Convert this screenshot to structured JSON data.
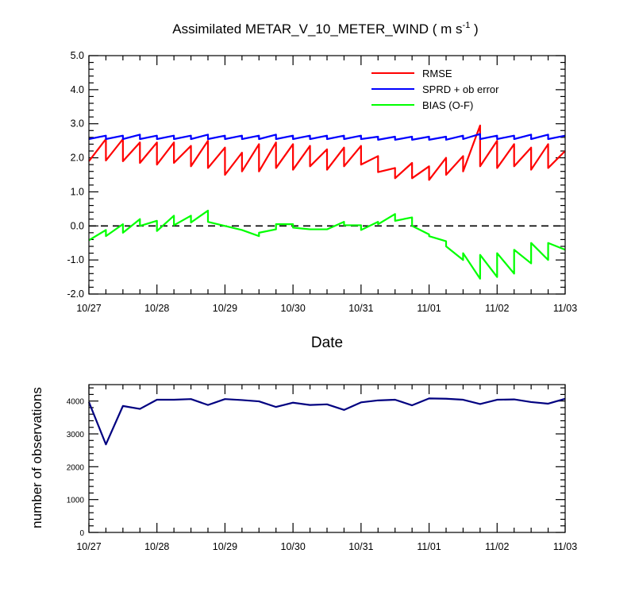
{
  "chart_data": [
    {
      "type": "line",
      "title": "Assimilated METAR_V_10_METER_WIND ( m s",
      "title_exponent": "-1",
      "title_close": " )",
      "xlabel": "Date",
      "ylabel": "",
      "xlim": [
        "10/27 00:00",
        "11/03 00:00"
      ],
      "ylim": [
        -2.0,
        5.0
      ],
      "x_ticks": [
        "10/27",
        "10/28",
        "10/29",
        "10/30",
        "10/31",
        "11/01",
        "11/02",
        "11/03"
      ],
      "y_ticks": [
        "-2.0",
        "-1.0",
        "0.0",
        "1.0",
        "2.0",
        "3.0",
        "4.0",
        "5.0"
      ],
      "y_tick_values": [
        -2,
        -1,
        0,
        1,
        2,
        3,
        4,
        5
      ],
      "zero_line": "dashed",
      "grid": false,
      "legend_position": "top-right",
      "series": [
        {
          "name": "RMSE",
          "color": "#ff0000",
          "points": [
            [
              "10/27 00:00",
              1.9
            ],
            [
              "10/27 06:00",
              2.55
            ],
            [
              "10/27 06:00",
              1.92
            ],
            [
              "10/27 12:00",
              2.55
            ],
            [
              "10/27 12:00",
              1.9
            ],
            [
              "10/27 18:00",
              2.45
            ],
            [
              "10/27 18:00",
              1.85
            ],
            [
              "10/28 00:00",
              2.45
            ],
            [
              "10/28 00:00",
              1.8
            ],
            [
              "10/28 06:00",
              2.45
            ],
            [
              "10/28 06:00",
              1.85
            ],
            [
              "10/28 12:00",
              2.35
            ],
            [
              "10/28 12:00",
              1.75
            ],
            [
              "10/28 18:00",
              2.5
            ],
            [
              "10/28 18:00",
              1.7
            ],
            [
              "10/29 00:00",
              2.3
            ],
            [
              "10/29 00:00",
              1.5
            ],
            [
              "10/29 06:00",
              2.15
            ],
            [
              "10/29 06:00",
              1.6
            ],
            [
              "10/29 12:00",
              2.4
            ],
            [
              "10/29 12:00",
              1.6
            ],
            [
              "10/29 18:00",
              2.45
            ],
            [
              "10/29 18:00",
              1.7
            ],
            [
              "10/30 00:00",
              2.4
            ],
            [
              "10/30 00:00",
              1.65
            ],
            [
              "10/30 06:00",
              2.35
            ],
            [
              "10/30 06:00",
              1.75
            ],
            [
              "10/30 12:00",
              2.25
            ],
            [
              "10/30 12:00",
              1.65
            ],
            [
              "10/30 18:00",
              2.3
            ],
            [
              "10/30 18:00",
              1.75
            ],
            [
              "10/31 00:00",
              2.35
            ],
            [
              "10/31 00:00",
              1.8
            ],
            [
              "10/31 06:00",
              2.05
            ],
            [
              "10/31 06:00",
              1.58
            ],
            [
              "10/31 12:00",
              1.7
            ],
            [
              "10/31 12:00",
              1.4
            ],
            [
              "10/31 18:00",
              1.85
            ],
            [
              "10/31 18:00",
              1.4
            ],
            [
              "11/01 00:00",
              1.75
            ],
            [
              "11/01 00:00",
              1.35
            ],
            [
              "11/01 06:00",
              2.0
            ],
            [
              "11/01 06:00",
              1.5
            ],
            [
              "11/01 12:00",
              2.05
            ],
            [
              "11/01 12:00",
              1.6
            ],
            [
              "11/01 18:00",
              2.95
            ],
            [
              "11/01 18:00",
              1.75
            ],
            [
              "11/02 00:00",
              2.5
            ],
            [
              "11/02 00:00",
              1.7
            ],
            [
              "11/02 06:00",
              2.4
            ],
            [
              "11/02 06:00",
              1.75
            ],
            [
              "11/02 12:00",
              2.3
            ],
            [
              "11/02 12:00",
              1.65
            ],
            [
              "11/02 18:00",
              2.4
            ],
            [
              "11/02 18:00",
              1.7
            ],
            [
              "11/03 00:00",
              2.2
            ]
          ]
        },
        {
          "name": "SPRD + ob error",
          "color": "#0000ff",
          "points": [
            [
              "10/27 00:00",
              2.55
            ],
            [
              "10/27 06:00",
              2.65
            ],
            [
              "10/27 06:00",
              2.55
            ],
            [
              "10/27 12:00",
              2.65
            ],
            [
              "10/27 12:00",
              2.55
            ],
            [
              "10/27 18:00",
              2.68
            ],
            [
              "10/27 18:00",
              2.55
            ],
            [
              "10/28 00:00",
              2.65
            ],
            [
              "10/28 00:00",
              2.55
            ],
            [
              "10/28 06:00",
              2.65
            ],
            [
              "10/28 06:00",
              2.55
            ],
            [
              "10/28 12:00",
              2.65
            ],
            [
              "10/28 12:00",
              2.55
            ],
            [
              "10/28 18:00",
              2.68
            ],
            [
              "10/28 18:00",
              2.55
            ],
            [
              "10/29 00:00",
              2.65
            ],
            [
              "10/29 00:00",
              2.55
            ],
            [
              "10/29 06:00",
              2.65
            ],
            [
              "10/29 06:00",
              2.55
            ],
            [
              "10/29 12:00",
              2.65
            ],
            [
              "10/29 12:00",
              2.55
            ],
            [
              "10/29 18:00",
              2.68
            ],
            [
              "10/29 18:00",
              2.55
            ],
            [
              "10/30 00:00",
              2.65
            ],
            [
              "10/30 00:00",
              2.55
            ],
            [
              "10/30 06:00",
              2.65
            ],
            [
              "10/30 06:00",
              2.55
            ],
            [
              "10/30 12:00",
              2.65
            ],
            [
              "10/30 12:00",
              2.55
            ],
            [
              "10/30 18:00",
              2.65
            ],
            [
              "10/30 18:00",
              2.55
            ],
            [
              "10/31 00:00",
              2.65
            ],
            [
              "10/31 00:00",
              2.55
            ],
            [
              "10/31 06:00",
              2.62
            ],
            [
              "10/31 06:00",
              2.53
            ],
            [
              "10/31 12:00",
              2.62
            ],
            [
              "10/31 12:00",
              2.53
            ],
            [
              "10/31 18:00",
              2.62
            ],
            [
              "10/31 18:00",
              2.53
            ],
            [
              "11/01 00:00",
              2.62
            ],
            [
              "11/01 00:00",
              2.53
            ],
            [
              "11/01 06:00",
              2.62
            ],
            [
              "11/01 06:00",
              2.53
            ],
            [
              "11/01 12:00",
              2.65
            ],
            [
              "11/01 12:00",
              2.55
            ],
            [
              "11/01 18:00",
              2.7
            ],
            [
              "11/01 18:00",
              2.55
            ],
            [
              "11/02 00:00",
              2.65
            ],
            [
              "11/02 00:00",
              2.55
            ],
            [
              "11/02 06:00",
              2.65
            ],
            [
              "11/02 06:00",
              2.55
            ],
            [
              "11/02 12:00",
              2.68
            ],
            [
              "11/02 12:00",
              2.55
            ],
            [
              "11/02 18:00",
              2.68
            ],
            [
              "11/02 18:00",
              2.55
            ],
            [
              "11/03 00:00",
              2.65
            ]
          ]
        },
        {
          "name": "BIAS (O-F)",
          "color": "#00ff00",
          "points": [
            [
              "10/27 00:00",
              -0.42
            ],
            [
              "10/27 06:00",
              -0.12
            ],
            [
              "10/27 06:00",
              -0.3
            ],
            [
              "10/27 12:00",
              0.05
            ],
            [
              "10/27 12:00",
              -0.2
            ],
            [
              "10/27 18:00",
              0.2
            ],
            [
              "10/27 18:00",
              0.0
            ],
            [
              "10/28 00:00",
              0.15
            ],
            [
              "10/28 00:00",
              -0.15
            ],
            [
              "10/28 06:00",
              0.3
            ],
            [
              "10/28 06:00",
              0.02
            ],
            [
              "10/28 12:00",
              0.3
            ],
            [
              "10/28 12:00",
              0.1
            ],
            [
              "10/28 18:00",
              0.45
            ],
            [
              "10/28 18:00",
              0.12
            ],
            [
              "10/29 00:00",
              0.0
            ],
            [
              "10/29 06:00",
              -0.12
            ],
            [
              "10/29 12:00",
              -0.3
            ],
            [
              "10/29 12:00",
              -0.2
            ],
            [
              "10/29 18:00",
              -0.1
            ],
            [
              "10/29 18:00",
              0.05
            ],
            [
              "10/30 00:00",
              0.05
            ],
            [
              "10/30 00:00",
              -0.05
            ],
            [
              "10/30 06:00",
              -0.1
            ],
            [
              "10/30 12:00",
              -0.1
            ],
            [
              "10/30 18:00",
              0.12
            ],
            [
              "10/30 18:00",
              0.02
            ],
            [
              "10/31 00:00",
              0.02
            ],
            [
              "10/31 00:00",
              -0.12
            ],
            [
              "10/31 06:00",
              0.12
            ],
            [
              "10/31 06:00",
              0.05
            ],
            [
              "10/31 12:00",
              0.35
            ],
            [
              "10/31 12:00",
              0.15
            ],
            [
              "10/31 18:00",
              0.25
            ],
            [
              "10/31 18:00",
              0.0
            ],
            [
              "11/01 00:00",
              -0.25
            ],
            [
              "11/01 00:00",
              -0.3
            ],
            [
              "11/01 06:00",
              -0.45
            ],
            [
              "11/01 06:00",
              -0.6
            ],
            [
              "11/01 12:00",
              -1.0
            ],
            [
              "11/01 12:00",
              -0.8
            ],
            [
              "11/01 18:00",
              -1.55
            ],
            [
              "11/01 18:00",
              -0.85
            ],
            [
              "11/02 00:00",
              -1.5
            ],
            [
              "11/02 00:00",
              -0.8
            ],
            [
              "11/02 06:00",
              -1.4
            ],
            [
              "11/02 06:00",
              -0.7
            ],
            [
              "11/02 12:00",
              -1.1
            ],
            [
              "11/02 12:00",
              -0.5
            ],
            [
              "11/02 18:00",
              -1.0
            ],
            [
              "11/02 18:00",
              -0.5
            ],
            [
              "11/03 00:00",
              -0.7
            ]
          ]
        }
      ]
    },
    {
      "type": "line",
      "title": "",
      "xlabel": "",
      "ylabel": "number of observations",
      "xlim": [
        "10/27 00:00",
        "11/03 00:00"
      ],
      "ylim": [
        0,
        4500
      ],
      "x_ticks": [
        "10/27",
        "10/28",
        "10/29",
        "10/30",
        "10/31",
        "11/01",
        "11/02",
        "11/03"
      ],
      "y_ticks": [
        "0",
        "1000",
        "2000",
        "3000",
        "4000"
      ],
      "y_tick_values": [
        0,
        1000,
        2000,
        3000,
        4000
      ],
      "grid": false,
      "series": [
        {
          "color": "#000080",
          "points": [
            [
              "10/27 00:00",
              3970
            ],
            [
              "10/27 06:00",
              2680
            ],
            [
              "10/27 12:00",
              3850
            ],
            [
              "10/27 18:00",
              3760
            ],
            [
              "10/28 00:00",
              4040
            ],
            [
              "10/28 06:00",
              4040
            ],
            [
              "10/28 12:00",
              4060
            ],
            [
              "10/28 18:00",
              3880
            ],
            [
              "10/29 00:00",
              4060
            ],
            [
              "10/29 06:00",
              4030
            ],
            [
              "10/29 12:00",
              3990
            ],
            [
              "10/29 18:00",
              3820
            ],
            [
              "10/30 00:00",
              3950
            ],
            [
              "10/30 06:00",
              3880
            ],
            [
              "10/30 12:00",
              3900
            ],
            [
              "10/30 18:00",
              3730
            ],
            [
              "10/31 00:00",
              3960
            ],
            [
              "10/31 06:00",
              4020
            ],
            [
              "10/31 12:00",
              4040
            ],
            [
              "10/31 18:00",
              3870
            ],
            [
              "11/01 00:00",
              4080
            ],
            [
              "11/01 06:00",
              4070
            ],
            [
              "11/01 12:00",
              4040
            ],
            [
              "11/01 18:00",
              3910
            ],
            [
              "11/02 00:00",
              4040
            ],
            [
              "11/02 06:00",
              4050
            ],
            [
              "11/02 12:00",
              3970
            ],
            [
              "11/02 18:00",
              3920
            ],
            [
              "11/03 00:00",
              4070
            ]
          ]
        }
      ]
    }
  ]
}
